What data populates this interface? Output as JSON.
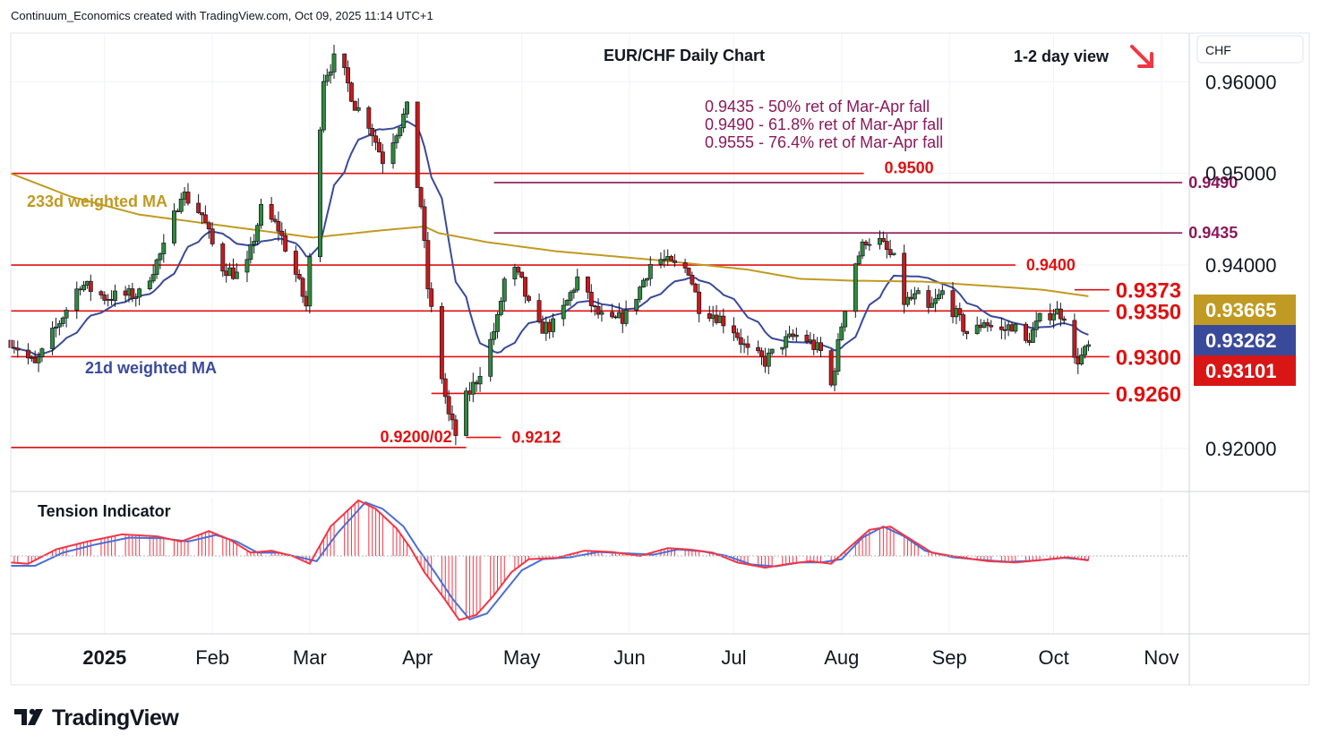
{
  "header": {
    "credit": "Continuum_Economics created with TradingView.com, Oct 09, 2025 11:14 UTC+1"
  },
  "brand": {
    "name": "TradingView",
    "logo_icon": "tradingview-logo-icon"
  },
  "chart_data": {
    "type": "candlestick",
    "title": "EUR/CHF Daily Chart",
    "view": {
      "label": "1-2 day view",
      "direction": "down",
      "arrow_color": "#f23645"
    },
    "currency_label": "CHF",
    "ylim": [
      0.9153,
      0.9653
    ],
    "y_ticks": [
      {
        "value": 0.96,
        "label": "0.96000"
      },
      {
        "value": 0.95,
        "label": "0.95000"
      },
      {
        "value": 0.94,
        "label": "0.94000"
      },
      {
        "value": 0.92,
        "label": "0.92000"
      }
    ],
    "x_ticks": [
      {
        "day": 0,
        "label": "2025",
        "bold": true
      },
      {
        "day": 31,
        "label": "Feb"
      },
      {
        "day": 59,
        "label": "Mar"
      },
      {
        "day": 90,
        "label": "Apr"
      },
      {
        "day": 120,
        "label": "May"
      },
      {
        "day": 151,
        "label": "Jun"
      },
      {
        "day": 181,
        "label": "Jul"
      },
      {
        "day": 212,
        "label": "Aug"
      },
      {
        "day": 243,
        "label": "Sep"
      },
      {
        "day": 273,
        "label": "Oct"
      },
      {
        "day": 304,
        "label": "Nov"
      }
    ],
    "x_range_days": [
      -27,
      312
    ],
    "annotations_text": [
      "0.9435 - 50% ret of Mar-Apr fall",
      "0.9490 - 61.8% ret of Mar-Apr fall",
      "0.9555 - 76.4% ret of Mar-Apr fall"
    ],
    "levels": [
      {
        "value": 0.95,
        "label": "0.9500",
        "color": "#e01010",
        "from": -27,
        "to": 239,
        "big": false
      },
      {
        "value": 0.949,
        "label": "0.9490",
        "color": "#8b1a5a",
        "from": 112,
        "to": 310,
        "big": false
      },
      {
        "value": 0.9435,
        "label": "0.9435",
        "color": "#8b1a5a",
        "from": 112,
        "to": 310,
        "big": false
      },
      {
        "value": 0.94,
        "label": "0.9400",
        "color": "#e01010",
        "from": -27,
        "to": 262,
        "big": false
      },
      {
        "value": 0.9373,
        "label": "0.9373",
        "color": "#e01010",
        "from": 279,
        "to": 289,
        "big": true
      },
      {
        "value": 0.935,
        "label": "0.9350",
        "color": "#e01010",
        "from": -27,
        "to": 289,
        "big": true
      },
      {
        "value": 0.93,
        "label": "0.9300",
        "color": "#e01010",
        "from": -27,
        "to": 289,
        "big": true
      },
      {
        "value": 0.926,
        "label": "0.9260",
        "color": "#e01010",
        "from": 94,
        "to": 289,
        "big": true
      },
      {
        "value": 0.9212,
        "label": "0.9212",
        "color": "#e01010",
        "from": 104,
        "to": 114,
        "big": false
      },
      {
        "value": 0.9201,
        "label": "0.9200/02",
        "color": "#e01010",
        "from": -27,
        "to": 104,
        "big": false
      }
    ],
    "price_badges": [
      {
        "label": "0.93665",
        "value": 0.93665,
        "color": "#c09a22"
      },
      {
        "label": "0.93262",
        "value": 0.93262,
        "color": "#3a4a9a"
      },
      {
        "label": "0.93101",
        "value": 0.93101,
        "color": "#d81616"
      }
    ],
    "series_labels": {
      "ma21": "21d weighted MA",
      "ma233": "233d weighted MA"
    },
    "colors": {
      "up": "#2f8a3c",
      "down": "#c71a1a",
      "ma21": "#3a4a9a",
      "ma233": "#c09a22",
      "tension_fast": "#f23645",
      "tension_slow": "#4a6ed8"
    },
    "close_anchors": [
      [
        -27,
        0.9318
      ],
      [
        -20,
        0.929
      ],
      [
        -12,
        0.9345
      ],
      [
        -7,
        0.938
      ],
      [
        0,
        0.9365
      ],
      [
        10,
        0.9368
      ],
      [
        18,
        0.9425
      ],
      [
        22,
        0.948
      ],
      [
        28,
        0.9455
      ],
      [
        33,
        0.94
      ],
      [
        40,
        0.9385
      ],
      [
        45,
        0.946
      ],
      [
        50,
        0.944
      ],
      [
        55,
        0.939
      ],
      [
        58,
        0.9355
      ],
      [
        63,
        0.9605
      ],
      [
        67,
        0.963
      ],
      [
        72,
        0.9575
      ],
      [
        76,
        0.9555
      ],
      [
        80,
        0.9515
      ],
      [
        85,
        0.9555
      ],
      [
        87,
        0.957
      ],
      [
        89,
        0.951
      ],
      [
        91,
        0.9465
      ],
      [
        93,
        0.9375
      ],
      [
        96,
        0.93
      ],
      [
        99,
        0.9235
      ],
      [
        101,
        0.9215
      ],
      [
        104,
        0.9255
      ],
      [
        107,
        0.9275
      ],
      [
        110,
        0.9305
      ],
      [
        113,
        0.934
      ],
      [
        116,
        0.9405
      ],
      [
        120,
        0.938
      ],
      [
        124,
        0.933
      ],
      [
        130,
        0.9335
      ],
      [
        136,
        0.9385
      ],
      [
        141,
        0.935
      ],
      [
        145,
        0.9335
      ],
      [
        150,
        0.9345
      ],
      [
        154,
        0.9375
      ],
      [
        158,
        0.941
      ],
      [
        163,
        0.94
      ],
      [
        168,
        0.9395
      ],
      [
        171,
        0.9355
      ],
      [
        176,
        0.9345
      ],
      [
        181,
        0.933
      ],
      [
        185,
        0.9305
      ],
      [
        190,
        0.9295
      ],
      [
        195,
        0.9315
      ],
      [
        200,
        0.9325
      ],
      [
        206,
        0.9305
      ],
      [
        209,
        0.9268
      ],
      [
        212,
        0.9335
      ],
      [
        215,
        0.9395
      ],
      [
        219,
        0.9428
      ],
      [
        223,
        0.9425
      ],
      [
        227,
        0.9405
      ],
      [
        230,
        0.936
      ],
      [
        234,
        0.9365
      ],
      [
        237,
        0.935
      ],
      [
        241,
        0.937
      ],
      [
        245,
        0.9345
      ],
      [
        249,
        0.932
      ],
      [
        253,
        0.934
      ],
      [
        257,
        0.9325
      ],
      [
        261,
        0.9335
      ],
      [
        265,
        0.9315
      ],
      [
        269,
        0.934
      ],
      [
        273,
        0.935
      ],
      [
        277,
        0.9345
      ],
      [
        279,
        0.9295
      ],
      [
        281,
        0.93
      ],
      [
        283,
        0.931
      ]
    ],
    "ma233_anchors": [
      [
        -27,
        0.95
      ],
      [
        -10,
        0.9475
      ],
      [
        10,
        0.9455
      ],
      [
        30,
        0.9445
      ],
      [
        60,
        0.943
      ],
      [
        80,
        0.9438
      ],
      [
        92,
        0.9442
      ],
      [
        96,
        0.9435
      ],
      [
        110,
        0.9425
      ],
      [
        130,
        0.9415
      ],
      [
        160,
        0.9405
      ],
      [
        185,
        0.9395
      ],
      [
        200,
        0.9385
      ],
      [
        215,
        0.9383
      ],
      [
        235,
        0.9382
      ],
      [
        255,
        0.9377
      ],
      [
        270,
        0.9373
      ],
      [
        283,
        0.9366
      ]
    ],
    "tension_indicator": {
      "title": "Tension Indicator",
      "fast_anchors": [
        [
          -27,
          -0.1
        ],
        [
          -22,
          -0.12
        ],
        [
          -14,
          0.1
        ],
        [
          -5,
          0.22
        ],
        [
          5,
          0.33
        ],
        [
          15,
          0.3
        ],
        [
          22,
          0.22
        ],
        [
          30,
          0.38
        ],
        [
          36,
          0.25
        ],
        [
          42,
          0.05
        ],
        [
          48,
          0.08
        ],
        [
          54,
          0.0
        ],
        [
          59,
          -0.12
        ],
        [
          65,
          0.45
        ],
        [
          73,
          0.85
        ],
        [
          78,
          0.72
        ],
        [
          84,
          0.42
        ],
        [
          88,
          0.12
        ],
        [
          92,
          -0.25
        ],
        [
          97,
          -0.6
        ],
        [
          102,
          -0.98
        ],
        [
          107,
          -0.9
        ],
        [
          112,
          -0.6
        ],
        [
          117,
          -0.25
        ],
        [
          122,
          -0.05
        ],
        [
          130,
          -0.03
        ],
        [
          138,
          0.08
        ],
        [
          146,
          0.06
        ],
        [
          154,
          0.0
        ],
        [
          162,
          0.12
        ],
        [
          168,
          0.1
        ],
        [
          175,
          0.05
        ],
        [
          182,
          -0.1
        ],
        [
          190,
          -0.18
        ],
        [
          197,
          -0.12
        ],
        [
          203,
          -0.08
        ],
        [
          209,
          -0.12
        ],
        [
          214,
          0.12
        ],
        [
          220,
          0.4
        ],
        [
          226,
          0.45
        ],
        [
          232,
          0.25
        ],
        [
          238,
          0.05
        ],
        [
          246,
          -0.02
        ],
        [
          254,
          -0.08
        ],
        [
          262,
          -0.1
        ],
        [
          270,
          -0.06
        ],
        [
          277,
          -0.02
        ],
        [
          283,
          -0.07
        ]
      ],
      "slow_anchors": [
        [
          -27,
          -0.15
        ],
        [
          -20,
          -0.15
        ],
        [
          -12,
          0.05
        ],
        [
          -3,
          0.17
        ],
        [
          7,
          0.28
        ],
        [
          17,
          0.27
        ],
        [
          24,
          0.22
        ],
        [
          32,
          0.32
        ],
        [
          38,
          0.22
        ],
        [
          44,
          0.05
        ],
        [
          50,
          0.05
        ],
        [
          56,
          -0.02
        ],
        [
          61,
          -0.08
        ],
        [
          67,
          0.35
        ],
        [
          75,
          0.82
        ],
        [
          80,
          0.72
        ],
        [
          86,
          0.45
        ],
        [
          90,
          0.12
        ],
        [
          95,
          -0.25
        ],
        [
          100,
          -0.65
        ],
        [
          105,
          -0.97
        ],
        [
          110,
          -0.88
        ],
        [
          115,
          -0.55
        ],
        [
          120,
          -0.22
        ],
        [
          126,
          -0.05
        ],
        [
          134,
          -0.02
        ],
        [
          142,
          0.06
        ],
        [
          150,
          0.04
        ],
        [
          158,
          0.02
        ],
        [
          165,
          0.1
        ],
        [
          172,
          0.07
        ],
        [
          179,
          0.0
        ],
        [
          186,
          -0.13
        ],
        [
          193,
          -0.16
        ],
        [
          200,
          -0.1
        ],
        [
          206,
          -0.1
        ],
        [
          212,
          -0.05
        ],
        [
          218,
          0.28
        ],
        [
          224,
          0.45
        ],
        [
          230,
          0.3
        ],
        [
          236,
          0.08
        ],
        [
          244,
          -0.02
        ],
        [
          252,
          -0.06
        ],
        [
          260,
          -0.09
        ],
        [
          268,
          -0.07
        ],
        [
          276,
          -0.03
        ],
        [
          283,
          -0.06
        ]
      ]
    }
  }
}
